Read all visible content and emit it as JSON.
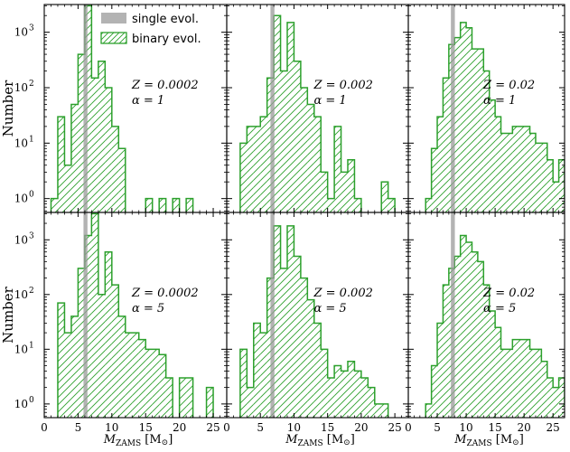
{
  "chart_data": {
    "type": "bar",
    "figure": {
      "ylabel": "Number",
      "xlabel": "M",
      "xlabel_sub": "ZAMS",
      "xlabel_unit": " [M",
      "xlabel_unit_sym": "⊙",
      "xlabel_unit_end": "]",
      "xlim": [
        0,
        27
      ],
      "ylim_log10": [
        -0.25,
        3.5
      ],
      "x_ticks": [
        0,
        5,
        10,
        15,
        20,
        25
      ],
      "y_ticks": [
        {
          "exp": 0,
          "label_base": "10",
          "label_exp": "0"
        },
        {
          "exp": 1,
          "label_base": "10",
          "label_exp": "1"
        },
        {
          "exp": 2,
          "label_base": "10",
          "label_exp": "2"
        },
        {
          "exp": 3,
          "label_base": "10",
          "label_exp": "3"
        }
      ],
      "bin_width": 1,
      "hist_color": "#2ca02c",
      "single_color": "#999999"
    },
    "legend": {
      "location": "top-left of first panel",
      "entries": [
        {
          "label": "single evol.",
          "style": "gray-bar"
        },
        {
          "label": "binary evol.",
          "style": "green-hatch"
        }
      ]
    },
    "panels": [
      {
        "row": 0,
        "col": 0,
        "annotation_z": "Z = 0.0002",
        "annotation_a": "α = 1",
        "single_mass": 6.1,
        "bin_edges_start": 1,
        "counts": [
          1,
          30,
          4,
          50,
          400,
          3000,
          150,
          300,
          100,
          20,
          8,
          0,
          0,
          0,
          1,
          0,
          1,
          0,
          1,
          0,
          1,
          0,
          0,
          0,
          0,
          0
        ]
      },
      {
        "row": 0,
        "col": 1,
        "annotation_z": "Z = 0.002",
        "annotation_a": "α = 1",
        "single_mass": 6.8,
        "bin_edges_start": 2,
        "counts": [
          10,
          20,
          20,
          30,
          150,
          2000,
          200,
          1500,
          300,
          100,
          50,
          30,
          3,
          1,
          20,
          3,
          5,
          1,
          0,
          0,
          0,
          2,
          1,
          0
        ]
      },
      {
        "row": 0,
        "col": 2,
        "annotation_z": "Z = 0.02",
        "annotation_a": "α = 1",
        "single_mass": 7.7,
        "bin_edges_start": 3,
        "counts": [
          1,
          8,
          30,
          150,
          600,
          800,
          1500,
          1200,
          500,
          500,
          200,
          60,
          30,
          15,
          15,
          20,
          20,
          20,
          15,
          10,
          10,
          5,
          2,
          5,
          1
        ]
      },
      {
        "row": 1,
        "col": 0,
        "annotation_z": "Z = 0.0002",
        "annotation_a": "α = 5",
        "single_mass": 6.1,
        "bin_edges_start": 2,
        "counts": [
          70,
          20,
          40,
          300,
          1200,
          3000,
          100,
          600,
          150,
          40,
          20,
          20,
          15,
          10,
          10,
          8,
          3,
          0,
          3,
          3,
          0,
          0,
          2,
          0
        ]
      },
      {
        "row": 1,
        "col": 1,
        "annotation_z": "Z = 0.002",
        "annotation_a": "α = 5",
        "single_mass": 6.8,
        "bin_edges_start": 2,
        "counts": [
          10,
          2,
          30,
          20,
          200,
          1800,
          300,
          1800,
          500,
          200,
          80,
          30,
          10,
          3,
          5,
          4,
          6,
          4,
          3,
          2,
          1,
          1,
          0
        ]
      },
      {
        "row": 1,
        "col": 2,
        "annotation_z": "Z = 0.02",
        "annotation_a": "α = 5",
        "single_mass": 7.7,
        "bin_edges_start": 3,
        "counts": [
          1,
          5,
          30,
          150,
          300,
          500,
          1200,
          900,
          600,
          400,
          150,
          50,
          25,
          10,
          10,
          15,
          15,
          15,
          10,
          10,
          6,
          3,
          2,
          3,
          1
        ]
      }
    ]
  }
}
